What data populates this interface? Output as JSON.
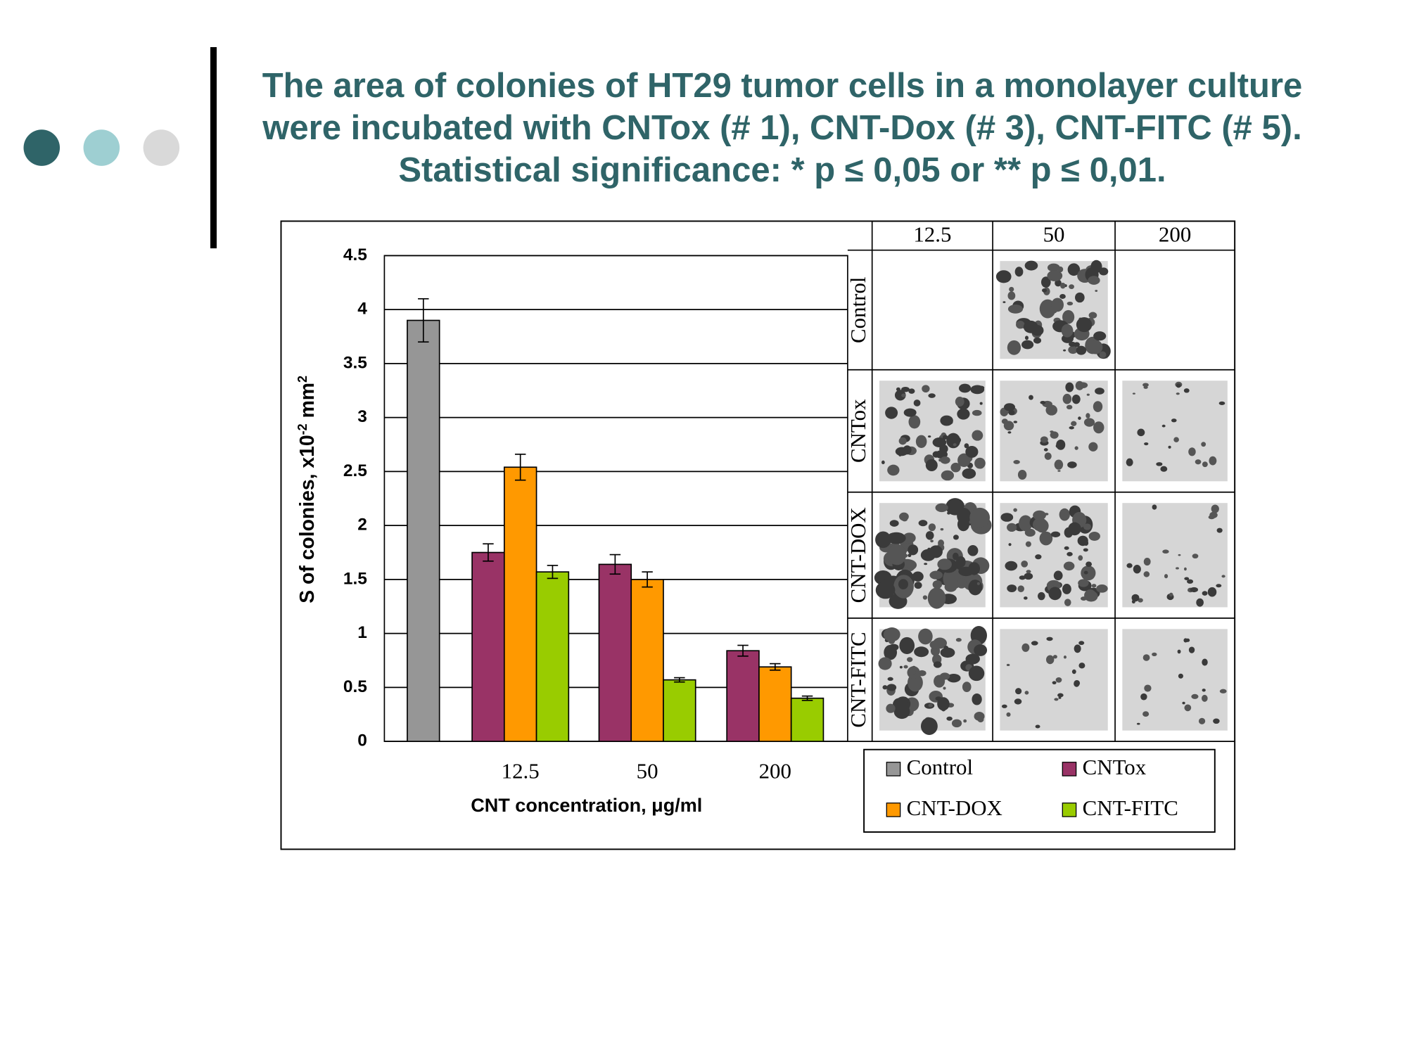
{
  "slide": {
    "title": "The area of colonies of HT29 tumor cells in a monolayer culture were incubated with CNTox (# 1), CNT-Dox (# 3), CNT-FITC (# 5). Statistical significance: * p ≤ 0,05 or ** p ≤ 0,01."
  },
  "chart_data": {
    "type": "bar",
    "categories": [
      null,
      "12.5",
      "50",
      "200"
    ],
    "series": [
      {
        "name": "Control",
        "color": "#969696",
        "values": [
          3.9,
          null,
          null,
          null
        ],
        "errors": [
          0.2,
          null,
          null,
          null
        ]
      },
      {
        "name": "CNTox",
        "color": "#993366",
        "values": [
          null,
          1.75,
          1.64,
          0.84
        ],
        "errors": [
          null,
          0.08,
          0.09,
          0.05
        ]
      },
      {
        "name": "CNT-DOX",
        "color": "#ff9900",
        "values": [
          null,
          2.54,
          1.5,
          0.69
        ],
        "errors": [
          null,
          0.12,
          0.07,
          0.03
        ]
      },
      {
        "name": "CNT-FITC",
        "color": "#99cc00",
        "values": [
          null,
          1.57,
          0.57,
          0.4
        ],
        "errors": [
          null,
          0.06,
          0.02,
          0.02
        ]
      }
    ],
    "ylim": [
      0,
      4.5
    ],
    "yticks": [
      0,
      0.5,
      1,
      1.5,
      2,
      2.5,
      3,
      3.5,
      4,
      4.5
    ],
    "grid": true,
    "ylabel": [
      "S of colonies, x10",
      "-2",
      " mm",
      "2"
    ],
    "xlabel": "CNT concentration, μg/ml",
    "legend": "bottom-right"
  },
  "micrographs": {
    "columns": [
      "12.5",
      "50",
      "200"
    ],
    "rows": [
      "Control",
      "CNTox",
      "CNT-DOX",
      "CNT-FITC"
    ]
  }
}
